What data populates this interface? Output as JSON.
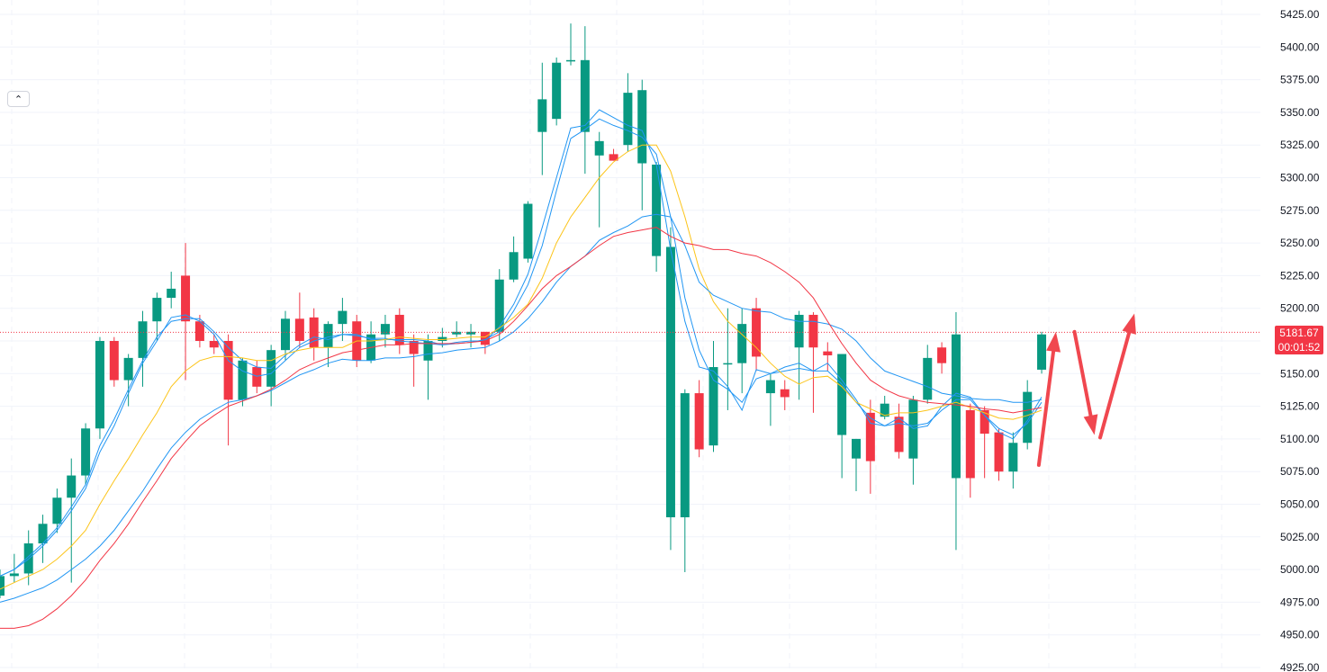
{
  "collapse_button": {
    "icon": "chevron-up-icon",
    "glyph": "⌃"
  },
  "current_price": {
    "value": "5181.67",
    "countdown": "00:01:52",
    "color": "#f23645"
  },
  "colors": {
    "up": "#089981",
    "down": "#f23645",
    "grid": "#f0f3fa",
    "ma_fast": "#2196f3",
    "ma_yellow": "#fcc419",
    "ma_red": "#f23645"
  },
  "chart_data": {
    "type": "candlestick",
    "y_axis": {
      "range": [
        4925,
        5425
      ],
      "ticks": [
        "5425.00",
        "5400.00",
        "5375.00",
        "5350.00",
        "5325.00",
        "5300.00",
        "5275.00",
        "5250.00",
        "5225.00",
        "5200.00",
        "5175.00",
        "5150.00",
        "5125.00",
        "5100.00",
        "5075.00",
        "5050.00",
        "5025.00",
        "5000.00",
        "4975.00",
        "4950.00",
        "4925.00"
      ]
    },
    "grid": true,
    "candles": [
      [
        4980,
        4995,
        5000,
        4978
      ],
      [
        4995,
        4997,
        5012,
        4990
      ],
      [
        4997,
        5020,
        5030,
        4988
      ],
      [
        5020,
        5035,
        5042,
        5005
      ],
      [
        5035,
        5055,
        5062,
        5028
      ],
      [
        5055,
        5072,
        5085,
        4990
      ],
      [
        5072,
        5108,
        5112,
        5065
      ],
      [
        5108,
        5175,
        5178,
        5100
      ],
      [
        5175,
        5145,
        5178,
        5140
      ],
      [
        5145,
        5162,
        5165,
        5125
      ],
      [
        5162,
        5190,
        5198,
        5140
      ],
      [
        5190,
        5208,
        5212,
        5175
      ],
      [
        5208,
        5215,
        5228,
        5200
      ],
      [
        5225,
        5190,
        5250,
        5145
      ],
      [
        5190,
        5175,
        5195,
        5170
      ],
      [
        5175,
        5170,
        5180,
        5165
      ],
      [
        5175,
        5130,
        5180,
        5095
      ],
      [
        5130,
        5160,
        5162,
        5125
      ],
      [
        5155,
        5140,
        5160,
        5135
      ],
      [
        5140,
        5168,
        5172,
        5125
      ],
      [
        5168,
        5192,
        5198,
        5160
      ],
      [
        5192,
        5175,
        5212,
        5170
      ],
      [
        5193,
        5170,
        5200,
        5160
      ],
      [
        5170,
        5188,
        5190,
        5155
      ],
      [
        5188,
        5198,
        5208,
        5175
      ],
      [
        5190,
        5160,
        5195,
        5155
      ],
      [
        5160,
        5180,
        5190,
        5158
      ],
      [
        5180,
        5188,
        5195,
        5170
      ],
      [
        5195,
        5172,
        5200,
        5165
      ],
      [
        5175,
        5165,
        5180,
        5140
      ],
      [
        5160,
        5175,
        5180,
        5130
      ],
      [
        5175,
        5178,
        5185,
        5170
      ],
      [
        5180,
        5182,
        5190,
        5178
      ],
      [
        5180,
        5182,
        5188,
        5170
      ],
      [
        5182,
        5172,
        5178,
        5165
      ],
      [
        5182,
        5222,
        5230,
        5175
      ],
      [
        5222,
        5243,
        5255,
        5220
      ],
      [
        5238,
        5280,
        5282,
        5235
      ],
      [
        5335,
        5360,
        5388,
        5302
      ],
      [
        5345,
        5388,
        5392,
        5340
      ],
      [
        5390,
        5390,
        5418,
        5386
      ],
      [
        5335,
        5390,
        5416,
        5303
      ],
      [
        5317,
        5328,
        5335,
        5262
      ],
      [
        5318,
        5313,
        5322,
        5313
      ],
      [
        5325,
        5365,
        5380,
        5320
      ],
      [
        5311,
        5367,
        5375,
        5275
      ],
      [
        5240,
        5310,
        5312,
        5228
      ],
      [
        5040,
        5247,
        5262,
        5015
      ],
      [
        5040,
        5135,
        5138,
        4998
      ],
      [
        5135,
        5092,
        5145,
        5086
      ],
      [
        5095,
        5155,
        5175,
        5090
      ],
      [
        5158,
        5158,
        5200,
        5122
      ],
      [
        5158,
        5188,
        5200,
        5135
      ],
      [
        5200,
        5163,
        5208,
        5152
      ],
      [
        5135,
        5145,
        5150,
        5110
      ],
      [
        5138,
        5132,
        5145,
        5122
      ],
      [
        5170,
        5195,
        5198,
        5130
      ],
      [
        5195,
        5170,
        5197,
        5120
      ],
      [
        5167,
        5164,
        5174,
        5152
      ],
      [
        5103,
        5165,
        5165,
        5070
      ],
      [
        5085,
        5100,
        5100,
        5060
      ],
      [
        5120,
        5083,
        5130,
        5058
      ],
      [
        5117,
        5127,
        5133,
        5115
      ],
      [
        5117,
        5090,
        5127,
        5085
      ],
      [
        5085,
        5130,
        5133,
        5065
      ],
      [
        5130,
        5162,
        5172,
        5127
      ],
      [
        5170,
        5158,
        5174,
        5150
      ],
      [
        5070,
        5180,
        5197,
        5015
      ],
      [
        5122,
        5070,
        5127,
        5055
      ],
      [
        5122,
        5104,
        5125,
        5070
      ],
      [
        5105,
        5075,
        5108,
        5068
      ],
      [
        5075,
        5097,
        5105,
        5062
      ],
      [
        5097,
        5136,
        5145,
        5092
      ],
      [
        5153,
        5180,
        5182,
        5150
      ]
    ],
    "moving_averages": [
      {
        "color": "#2196f3",
        "values": [
          4995,
          5000,
          5008,
          5018,
          5030,
          5045,
          5062,
          5090,
          5110,
          5135,
          5158,
          5175,
          5193,
          5195,
          5190,
          5180,
          5160,
          5152,
          5148,
          5150,
          5160,
          5170,
          5175,
          5178,
          5180,
          5180,
          5176,
          5176,
          5176,
          5176,
          5175,
          5172,
          5174,
          5175,
          5175,
          5186,
          5203,
          5226,
          5262,
          5300,
          5338,
          5340,
          5352,
          5346,
          5340,
          5336,
          5310,
          5245,
          5190,
          5155,
          5152,
          5140,
          5122,
          5153,
          5150,
          5155,
          5158,
          5152,
          5158,
          5145,
          5130,
          5112,
          5110,
          5116,
          5108,
          5110,
          5125,
          5135,
          5132,
          5118,
          5105,
          5100,
          5114,
          5132
        ]
      },
      {
        "color": "#2196f3",
        "values": [
          4995,
          5000,
          5010,
          5020,
          5032,
          5048,
          5065,
          5095,
          5115,
          5138,
          5160,
          5178,
          5190,
          5192,
          5192,
          5182,
          5170,
          5160,
          5155,
          5154,
          5164,
          5172,
          5178,
          5176,
          5180,
          5179,
          5177,
          5177,
          5175,
          5174,
          5173,
          5172,
          5173,
          5174,
          5176,
          5182,
          5198,
          5218,
          5248,
          5290,
          5330,
          5337,
          5345,
          5340,
          5336,
          5331,
          5318,
          5270,
          5208,
          5168,
          5145,
          5138,
          5128,
          5146,
          5150,
          5152,
          5154,
          5152,
          5152,
          5142,
          5128,
          5116,
          5110,
          5112,
          5110,
          5112,
          5122,
          5130,
          5130,
          5118,
          5108,
          5103,
          5112,
          5128
        ]
      },
      {
        "color": "#fcc419",
        "values": [
          4985,
          4990,
          4995,
          5000,
          5008,
          5018,
          5030,
          5050,
          5068,
          5085,
          5103,
          5120,
          5140,
          5152,
          5160,
          5163,
          5163,
          5162,
          5160,
          5160,
          5165,
          5168,
          5170,
          5170,
          5170,
          5175,
          5175,
          5176,
          5178,
          5177,
          5176,
          5176,
          5177,
          5178,
          5178,
          5185,
          5193,
          5203,
          5223,
          5250,
          5270,
          5285,
          5300,
          5312,
          5320,
          5325,
          5325,
          5305,
          5270,
          5230,
          5205,
          5190,
          5180,
          5170,
          5158,
          5148,
          5142,
          5147,
          5148,
          5140,
          5128,
          5123,
          5118,
          5120,
          5120,
          5122,
          5125,
          5128,
          5124,
          5120,
          5116,
          5115,
          5118,
          5122
        ]
      },
      {
        "color": "#2196f3",
        "values": [
          4975,
          4978,
          4982,
          4986,
          4992,
          5000,
          5008,
          5018,
          5030,
          5045,
          5060,
          5077,
          5093,
          5105,
          5115,
          5122,
          5128,
          5130,
          5133,
          5137,
          5143,
          5149,
          5153,
          5158,
          5161,
          5160,
          5160,
          5162,
          5162,
          5163,
          5165,
          5166,
          5168,
          5169,
          5170,
          5175,
          5182,
          5192,
          5205,
          5220,
          5232,
          5240,
          5252,
          5258,
          5263,
          5270,
          5272,
          5270,
          5248,
          5220,
          5210,
          5205,
          5200,
          5198,
          5197,
          5192,
          5190,
          5190,
          5188,
          5184,
          5175,
          5162,
          5152,
          5148,
          5144,
          5140,
          5135,
          5133,
          5131,
          5130,
          5130,
          5128,
          5128,
          5130
        ]
      },
      {
        "color": "#f23645",
        "values": [
          4955,
          4955,
          4957,
          4962,
          4970,
          4980,
          4992,
          5007,
          5020,
          5035,
          5052,
          5068,
          5085,
          5098,
          5110,
          5118,
          5125,
          5129,
          5133,
          5138,
          5145,
          5153,
          5158,
          5162,
          5166,
          5168,
          5170,
          5172,
          5172,
          5173,
          5173,
          5173,
          5173,
          5174,
          5175,
          5180,
          5190,
          5202,
          5215,
          5225,
          5232,
          5240,
          5248,
          5255,
          5258,
          5260,
          5262,
          5255,
          5250,
          5248,
          5245,
          5245,
          5242,
          5240,
          5235,
          5228,
          5220,
          5208,
          5190,
          5173,
          5158,
          5145,
          5138,
          5133,
          5130,
          5128,
          5127,
          5126,
          5125,
          5123,
          5122,
          5120,
          5122,
          5124
        ]
      }
    ]
  },
  "annotation_arrows": [
    {
      "from": [
        72.8,
        5080
      ],
      "to": [
        74,
        5182
      ],
      "color": "#f0474f"
    },
    {
      "from": [
        75.3,
        5182
      ],
      "to": [
        76.7,
        5103
      ],
      "color": "#f0474f"
    },
    {
      "from": [
        77.1,
        5101
      ],
      "to": [
        79.5,
        5196
      ],
      "color": "#f0474f"
    }
  ]
}
